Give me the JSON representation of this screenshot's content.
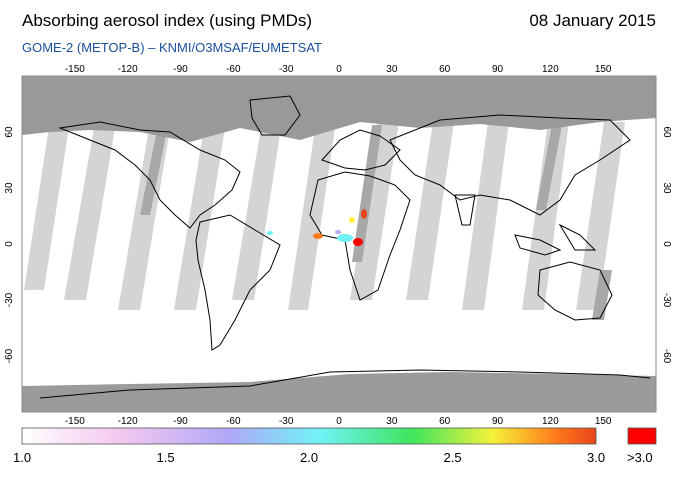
{
  "header": {
    "title": "Absorbing aerosol index (using PMDs)",
    "date": "08 January 2015",
    "subtitle": "GOME-2 (METOP-B)  –  KNMI/O3MSAF/EUMETSAT"
  },
  "map": {
    "lon_ticks": [
      "-150",
      "-120",
      "-90",
      "-60",
      "-30",
      "0",
      "30",
      "60",
      "90",
      "120",
      "150"
    ],
    "lat_ticks": [
      "60",
      "30",
      "0",
      "-30",
      "-60"
    ],
    "colors": {
      "frame": "#9b9b9b",
      "polar_night": "#999999",
      "swath_gap": "#d2d2d2",
      "coast": "#000000"
    }
  },
  "colorbar": {
    "labels": [
      "1.0",
      "1.5",
      "2.0",
      "2.5",
      "3.0"
    ],
    "over_label": ">3.0",
    "over_color": "#ff0000",
    "stops": [
      "#ffffff",
      "#f4c8ef",
      "#b0a8f8",
      "#6ff3f6",
      "#3ee55c",
      "#f6f23a",
      "#ff7a1a",
      "#e8451a"
    ]
  }
}
